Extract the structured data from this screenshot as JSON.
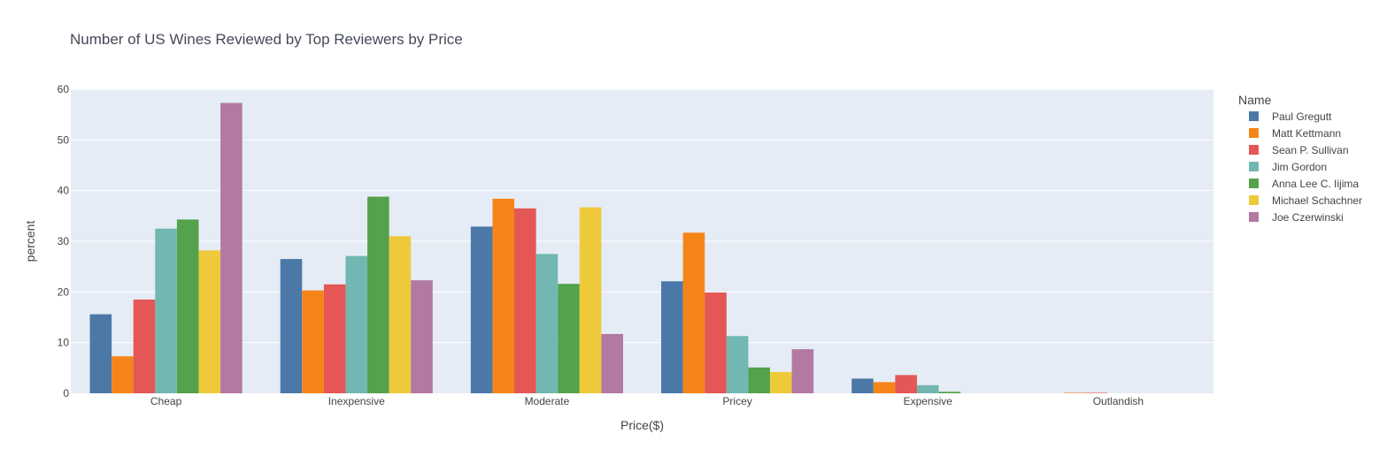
{
  "chart_data": {
    "type": "bar",
    "title": "Number of US Wines Reviewed by Top Reviewers by Price",
    "xlabel": "Price($)",
    "ylabel": "percent",
    "ylim": [
      0,
      60
    ],
    "yticks": [
      0,
      10,
      20,
      30,
      40,
      50,
      60
    ],
    "grid": true,
    "legend": {
      "title": "Name",
      "placement": "right"
    },
    "categories": [
      "Cheap",
      "Inexpensive",
      "Moderate",
      "Pricey",
      "Expensive",
      "Outlandish"
    ],
    "series": [
      {
        "name": "Paul Gregutt",
        "color": "#4c78a8",
        "values": [
          15.6,
          26.5,
          32.9,
          22.1,
          2.9,
          0.0
        ]
      },
      {
        "name": "Matt Kettmann",
        "color": "#f58518",
        "values": [
          7.3,
          20.3,
          38.4,
          31.7,
          2.2,
          0.1
        ]
      },
      {
        "name": "Sean P. Sullivan",
        "color": "#e45756",
        "values": [
          18.5,
          21.5,
          36.5,
          19.9,
          3.6,
          0.1
        ]
      },
      {
        "name": "Jim Gordon",
        "color": "#72b7b2",
        "values": [
          32.5,
          27.1,
          27.5,
          11.3,
          1.6,
          0.0
        ]
      },
      {
        "name": "Anna Lee C. Iijima",
        "color": "#54a24b",
        "values": [
          34.3,
          38.8,
          21.6,
          5.1,
          0.3,
          0.0
        ]
      },
      {
        "name": "Michael Schachner",
        "color": "#eeca3b",
        "values": [
          28.2,
          31.0,
          36.7,
          4.2,
          0.0,
          0.0
        ]
      },
      {
        "name": "Joe Czerwinski",
        "color": "#b279a2",
        "values": [
          57.3,
          22.3,
          11.7,
          8.7,
          0.0,
          0.0
        ]
      }
    ]
  }
}
